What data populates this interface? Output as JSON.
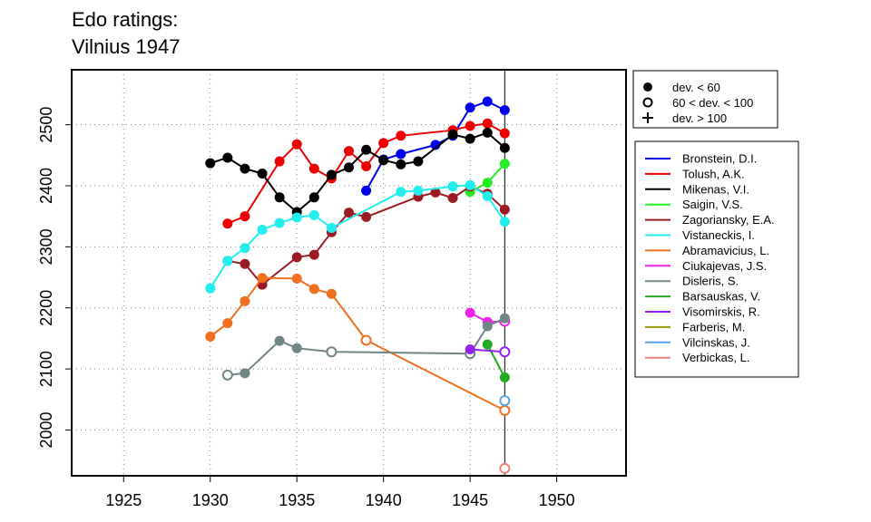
{
  "title": {
    "line1": "Edo ratings:",
    "line2": "Vilnius 1947"
  },
  "chart_data": {
    "type": "line",
    "xlim": [
      1922,
      1954
    ],
    "ylim": [
      1925,
      2590
    ],
    "xticks": [
      1925,
      1930,
      1935,
      1940,
      1945,
      1950
    ],
    "yticks": [
      2000,
      2100,
      2200,
      2300,
      2400,
      2500
    ],
    "grid": true,
    "reference_line_x": 1947,
    "marker_legend": [
      {
        "label": "dev. < 60",
        "marker": "filled-circle"
      },
      {
        "label": "60 < dev. < 100",
        "marker": "open-circle"
      },
      {
        "label": "dev. > 100",
        "marker": "plus"
      }
    ],
    "series": [
      {
        "name": "Bronstein, D.I.",
        "color": "#0000ee",
        "points": [
          {
            "x": 1939,
            "y": 2392,
            "m": "f"
          },
          {
            "x": 1940,
            "y": 2443,
            "m": "f"
          },
          {
            "x": 1941,
            "y": 2452,
            "m": "f"
          },
          {
            "x": 1943,
            "y": 2467,
            "m": "f"
          },
          {
            "x": 1944,
            "y": 2482,
            "m": "f"
          },
          {
            "x": 1945,
            "y": 2528,
            "m": "f"
          },
          {
            "x": 1946,
            "y": 2538,
            "m": "f"
          },
          {
            "x": 1947,
            "y": 2524,
            "m": "f"
          }
        ]
      },
      {
        "name": "Tolush, A.K.",
        "color": "#ee0000",
        "points": [
          {
            "x": 1931,
            "y": 2338,
            "m": "f"
          },
          {
            "x": 1932,
            "y": 2350,
            "m": "f"
          },
          {
            "x": 1934,
            "y": 2440,
            "m": "f"
          },
          {
            "x": 1935,
            "y": 2468,
            "m": "f"
          },
          {
            "x": 1936,
            "y": 2428,
            "m": "f"
          },
          {
            "x": 1937,
            "y": 2412,
            "m": "f"
          },
          {
            "x": 1938,
            "y": 2457,
            "m": "f"
          },
          {
            "x": 1939,
            "y": 2432,
            "m": "f"
          },
          {
            "x": 1940,
            "y": 2470,
            "m": "f"
          },
          {
            "x": 1941,
            "y": 2482,
            "m": "f"
          },
          {
            "x": 1944,
            "y": 2491,
            "m": "f"
          },
          {
            "x": 1945,
            "y": 2498,
            "m": "f"
          },
          {
            "x": 1946,
            "y": 2502,
            "m": "f"
          },
          {
            "x": 1947,
            "y": 2486,
            "m": "f"
          }
        ]
      },
      {
        "name": "Mikenas, V.I.",
        "color": "#000000",
        "points": [
          {
            "x": 1930,
            "y": 2437,
            "m": "f"
          },
          {
            "x": 1931,
            "y": 2446,
            "m": "f"
          },
          {
            "x": 1932,
            "y": 2428,
            "m": "f"
          },
          {
            "x": 1933,
            "y": 2420,
            "m": "f"
          },
          {
            "x": 1934,
            "y": 2381,
            "m": "f"
          },
          {
            "x": 1935,
            "y": 2357,
            "m": "f"
          },
          {
            "x": 1936,
            "y": 2381,
            "m": "f"
          },
          {
            "x": 1937,
            "y": 2418,
            "m": "f"
          },
          {
            "x": 1938,
            "y": 2430,
            "m": "f"
          },
          {
            "x": 1939,
            "y": 2459,
            "m": "f"
          },
          {
            "x": 1940,
            "y": 2442,
            "m": "f"
          },
          {
            "x": 1941,
            "y": 2435,
            "m": "f"
          },
          {
            "x": 1942,
            "y": 2440,
            "m": "f"
          },
          {
            "x": 1944,
            "y": 2484,
            "m": "f"
          },
          {
            "x": 1945,
            "y": 2477,
            "m": "f"
          },
          {
            "x": 1946,
            "y": 2487,
            "m": "f"
          },
          {
            "x": 1947,
            "y": 2462,
            "m": "f"
          }
        ]
      },
      {
        "name": "Saigin, V.S.",
        "color": "#22ee22",
        "points": [
          {
            "x": 1945,
            "y": 2390,
            "m": "f"
          },
          {
            "x": 1946,
            "y": 2405,
            "m": "f"
          },
          {
            "x": 1947,
            "y": 2436,
            "m": "f"
          }
        ]
      },
      {
        "name": "Zagoriansky, E.A.",
        "color": "#9b1b24",
        "points": [
          {
            "x": 1931,
            "y": 2277,
            "m": "f"
          },
          {
            "x": 1932,
            "y": 2272,
            "m": "f"
          },
          {
            "x": 1933,
            "y": 2238,
            "m": "f"
          },
          {
            "x": 1935,
            "y": 2283,
            "m": "f"
          },
          {
            "x": 1936,
            "y": 2287,
            "m": "f"
          },
          {
            "x": 1937,
            "y": 2324,
            "m": "f"
          },
          {
            "x": 1938,
            "y": 2356,
            "m": "f"
          },
          {
            "x": 1939,
            "y": 2349,
            "m": "f"
          },
          {
            "x": 1942,
            "y": 2382,
            "m": "f"
          },
          {
            "x": 1943,
            "y": 2389,
            "m": "f"
          },
          {
            "x": 1944,
            "y": 2380,
            "m": "f"
          },
          {
            "x": 1945,
            "y": 2399,
            "m": "f"
          },
          {
            "x": 1946,
            "y": 2387,
            "m": "f"
          },
          {
            "x": 1947,
            "y": 2361,
            "m": "f"
          }
        ]
      },
      {
        "name": "Vistaneckis, I.",
        "color": "#22eeee",
        "points": [
          {
            "x": 1930,
            "y": 2232,
            "m": "f"
          },
          {
            "x": 1931,
            "y": 2277,
            "m": "f"
          },
          {
            "x": 1932,
            "y": 2298,
            "m": "f"
          },
          {
            "x": 1933,
            "y": 2328,
            "m": "f"
          },
          {
            "x": 1934,
            "y": 2339,
            "m": "f"
          },
          {
            "x": 1935,
            "y": 2348,
            "m": "f"
          },
          {
            "x": 1936,
            "y": 2352,
            "m": "f"
          },
          {
            "x": 1937,
            "y": 2331,
            "m": "f"
          },
          {
            "x": 1941,
            "y": 2390,
            "m": "f"
          },
          {
            "x": 1942,
            "y": 2392,
            "m": "f"
          },
          {
            "x": 1944,
            "y": 2399,
            "m": "f"
          },
          {
            "x": 1945,
            "y": 2401,
            "m": "f"
          },
          {
            "x": 1946,
            "y": 2383,
            "m": "f"
          },
          {
            "x": 1947,
            "y": 2341,
            "m": "f"
          }
        ]
      },
      {
        "name": "Abramavicius, L.",
        "color": "#f07020",
        "points": [
          {
            "x": 1930,
            "y": 2153,
            "m": "f"
          },
          {
            "x": 1931,
            "y": 2175,
            "m": "f"
          },
          {
            "x": 1932,
            "y": 2211,
            "m": "f"
          },
          {
            "x": 1933,
            "y": 2249,
            "m": "f"
          },
          {
            "x": 1935,
            "y": 2248,
            "m": "f"
          },
          {
            "x": 1936,
            "y": 2231,
            "m": "f"
          },
          {
            "x": 1937,
            "y": 2223,
            "m": "f"
          },
          {
            "x": 1939,
            "y": 2147,
            "m": "o"
          },
          {
            "x": 1947,
            "y": 2032,
            "m": "o"
          }
        ]
      },
      {
        "name": "Ciukajevas, J.S.",
        "color": "#ee22ee",
        "points": [
          {
            "x": 1945,
            "y": 2192,
            "m": "f"
          },
          {
            "x": 1946,
            "y": 2177,
            "m": "f"
          },
          {
            "x": 1947,
            "y": 2178,
            "m": "o"
          }
        ]
      },
      {
        "name": "Disleris, S.",
        "color": "#708585",
        "points": [
          {
            "x": 1931,
            "y": 2090,
            "m": "o"
          },
          {
            "x": 1932,
            "y": 2093,
            "m": "f"
          },
          {
            "x": 1934,
            "y": 2146,
            "m": "f"
          },
          {
            "x": 1935,
            "y": 2134,
            "m": "f"
          },
          {
            "x": 1937,
            "y": 2128,
            "m": "o"
          },
          {
            "x": 1945,
            "y": 2125,
            "m": "o"
          },
          {
            "x": 1946,
            "y": 2170,
            "m": "f"
          },
          {
            "x": 1947,
            "y": 2183,
            "m": "f"
          }
        ]
      },
      {
        "name": "Barsauskas, V.",
        "color": "#22aa22",
        "points": [
          {
            "x": 1946,
            "y": 2140,
            "m": "f"
          },
          {
            "x": 1947,
            "y": 2086,
            "m": "f"
          }
        ]
      },
      {
        "name": "Visomirskis, R.",
        "color": "#9a22ee",
        "points": [
          {
            "x": 1945,
            "y": 2132,
            "m": "f"
          },
          {
            "x": 1947,
            "y": 2128,
            "m": "o"
          }
        ]
      },
      {
        "name": "Farberis, M.",
        "color": "#999900",
        "points": []
      },
      {
        "name": "Vilcinskas, J.",
        "color": "#5aa5e6",
        "points": [
          {
            "x": 1947,
            "y": 2048,
            "m": "o"
          }
        ]
      },
      {
        "name": "Verbickas, L.",
        "color": "#f08080",
        "points": [
          {
            "x": 1947,
            "y": 1937,
            "m": "o"
          }
        ]
      }
    ]
  }
}
